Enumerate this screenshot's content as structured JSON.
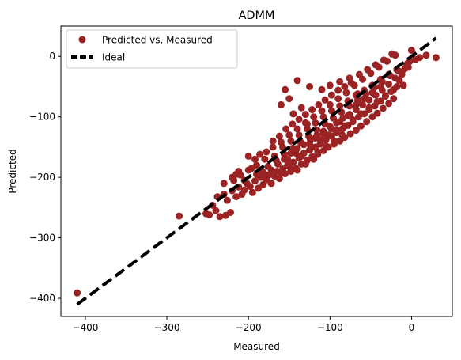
{
  "chart_data": {
    "type": "scatter",
    "title": "ADMM",
    "xlabel": "Measured",
    "ylabel": "Predicted",
    "xlim": [
      -430,
      50
    ],
    "ylim": [
      -430,
      50
    ],
    "xticks": [
      -400,
      -300,
      -200,
      -100,
      0
    ],
    "yticks": [
      -400,
      -300,
      -200,
      -100,
      0
    ],
    "xtick_labels": [
      "−400",
      "−300",
      "−200",
      "−100",
      "0"
    ],
    "ytick_labels": [
      "−400",
      "−300",
      "−200",
      "−100",
      "0"
    ],
    "grid": false,
    "legend": {
      "position": "top-left",
      "entries": [
        "Predicted vs. Measured",
        "Ideal"
      ]
    },
    "series": [
      {
        "name": "Predicted vs. Measured",
        "kind": "scatter",
        "color": "#9b2324",
        "points": [
          [
            -410,
            -391
          ],
          [
            -285,
            -264
          ],
          [
            -252,
            -260
          ],
          [
            -248,
            -262
          ],
          [
            -240,
            -255
          ],
          [
            -235,
            -265
          ],
          [
            -228,
            -263
          ],
          [
            -222,
            -258
          ],
          [
            -244,
            -246
          ],
          [
            -238,
            -232
          ],
          [
            -230,
            -228
          ],
          [
            -226,
            -238
          ],
          [
            -220,
            -222
          ],
          [
            -215,
            -232
          ],
          [
            -212,
            -216
          ],
          [
            -208,
            -228
          ],
          [
            -205,
            -221
          ],
          [
            -202,
            -210
          ],
          [
            -198,
            -215
          ],
          [
            -195,
            -225
          ],
          [
            -192,
            -206
          ],
          [
            -188,
            -218
          ],
          [
            -185,
            -200
          ],
          [
            -182,
            -212
          ],
          [
            -178,
            -204
          ],
          [
            -175,
            -196
          ],
          [
            -172,
            -210
          ],
          [
            -168,
            -198
          ],
          [
            -165,
            -190
          ],
          [
            -162,
            -202
          ],
          [
            -158,
            -186
          ],
          [
            -155,
            -194
          ],
          [
            -152,
            -180
          ],
          [
            -148,
            -190
          ],
          [
            -145,
            -175
          ],
          [
            -142,
            -185
          ],
          [
            -138,
            -168
          ],
          [
            -135,
            -178
          ],
          [
            -132,
            -160
          ],
          [
            -128,
            -172
          ],
          [
            -125,
            -155
          ],
          [
            -122,
            -166
          ],
          [
            -118,
            -150
          ],
          [
            -115,
            -162
          ],
          [
            -112,
            -145
          ],
          [
            -108,
            -156
          ],
          [
            -105,
            -138
          ],
          [
            -102,
            -150
          ],
          [
            -98,
            -132
          ],
          [
            -95,
            -145
          ],
          [
            -92,
            -126
          ],
          [
            -88,
            -140
          ],
          [
            -85,
            -120
          ],
          [
            -82,
            -134
          ],
          [
            -78,
            -114
          ],
          [
            -75,
            -128
          ],
          [
            -72,
            -108
          ],
          [
            -68,
            -122
          ],
          [
            -65,
            -100
          ],
          [
            -62,
            -115
          ],
          [
            -58,
            -95
          ],
          [
            -55,
            -108
          ],
          [
            -52,
            -88
          ],
          [
            -48,
            -100
          ],
          [
            -45,
            -82
          ],
          [
            -42,
            -94
          ],
          [
            -38,
            -74
          ],
          [
            -35,
            -86
          ],
          [
            -32,
            -66
          ],
          [
            -28,
            -78
          ],
          [
            -25,
            -58
          ],
          [
            -22,
            -70
          ],
          [
            -18,
            -50
          ],
          [
            -15,
            -40
          ],
          [
            -12,
            -30
          ],
          [
            -8,
            -20
          ],
          [
            -5,
            -12
          ],
          [
            -2,
            -8
          ],
          [
            0,
            10
          ],
          [
            5,
            -5
          ],
          [
            10,
            -2
          ],
          [
            18,
            2
          ],
          [
            30,
            -2
          ],
          [
            -200,
            -188
          ],
          [
            -210,
            -196
          ],
          [
            -190,
            -180
          ],
          [
            -180,
            -170
          ],
          [
            -170,
            -150
          ],
          [
            -160,
            -142
          ],
          [
            -150,
            -130
          ],
          [
            -140,
            -120
          ],
          [
            -130,
            -110
          ],
          [
            -120,
            -100
          ],
          [
            -110,
            -90
          ],
          [
            -100,
            -80
          ],
          [
            -90,
            -70
          ],
          [
            -80,
            -60
          ],
          [
            -70,
            -48
          ],
          [
            -60,
            -38
          ],
          [
            -50,
            -28
          ],
          [
            -40,
            -18
          ],
          [
            -30,
            -8
          ],
          [
            -20,
            2
          ],
          [
            -140,
            -40
          ],
          [
            -125,
            -50
          ],
          [
            -110,
            -55
          ],
          [
            -100,
            -48
          ],
          [
            -88,
            -42
          ],
          [
            -76,
            -36
          ],
          [
            -64,
            -30
          ],
          [
            -54,
            -22
          ],
          [
            -44,
            -14
          ],
          [
            -34,
            -6
          ],
          [
            -24,
            4
          ],
          [
            -155,
            -55
          ],
          [
            -160,
            -80
          ],
          [
            -150,
            -70
          ],
          [
            -145,
            -95
          ],
          [
            -135,
            -85
          ],
          [
            -128,
            -120
          ],
          [
            -118,
            -110
          ],
          [
            -108,
            -100
          ],
          [
            -98,
            -90
          ],
          [
            -88,
            -82
          ],
          [
            -78,
            -74
          ],
          [
            -68,
            -64
          ],
          [
            -58,
            -56
          ],
          [
            -48,
            -48
          ],
          [
            -38,
            -38
          ],
          [
            -28,
            -30
          ],
          [
            -18,
            -22
          ],
          [
            -220,
            -200
          ],
          [
            -215,
            -195
          ],
          [
            -205,
            -205
          ],
          [
            -190,
            -195
          ],
          [
            -183,
            -190
          ],
          [
            -176,
            -182
          ],
          [
            -166,
            -172
          ],
          [
            -156,
            -162
          ],
          [
            -146,
            -152
          ],
          [
            -136,
            -142
          ],
          [
            -126,
            -132
          ],
          [
            -116,
            -122
          ],
          [
            -106,
            -112
          ],
          [
            -96,
            -102
          ],
          [
            -86,
            -92
          ],
          [
            -76,
            -82
          ],
          [
            -66,
            -72
          ],
          [
            -56,
            -62
          ],
          [
            -46,
            -52
          ],
          [
            -36,
            -42
          ],
          [
            -26,
            -32
          ],
          [
            -16,
            -24
          ],
          [
            -6,
            -14
          ],
          [
            -10,
            -48
          ],
          [
            -200,
            -165
          ],
          [
            -192,
            -170
          ],
          [
            -186,
            -162
          ],
          [
            -178,
            -158
          ],
          [
            -170,
            -140
          ],
          [
            -162,
            -132
          ],
          [
            -154,
            -120
          ],
          [
            -146,
            -112
          ],
          [
            -138,
            -104
          ],
          [
            -130,
            -96
          ],
          [
            -122,
            -88
          ],
          [
            -114,
            -80
          ],
          [
            -106,
            -72
          ],
          [
            -98,
            -64
          ],
          [
            -90,
            -56
          ],
          [
            -82,
            -50
          ],
          [
            -74,
            -44
          ],
          [
            -66,
            -62
          ],
          [
            -180,
            -195
          ],
          [
            -172,
            -188
          ],
          [
            -164,
            -178
          ],
          [
            -156,
            -170
          ],
          [
            -148,
            -160
          ],
          [
            -140,
            -152
          ],
          [
            -132,
            -146
          ],
          [
            -124,
            -138
          ],
          [
            -116,
            -130
          ],
          [
            -108,
            -124
          ],
          [
            -100,
            -116
          ],
          [
            -92,
            -110
          ],
          [
            -84,
            -102
          ],
          [
            -76,
            -96
          ],
          [
            -68,
            -88
          ],
          [
            -60,
            -80
          ],
          [
            -52,
            -72
          ],
          [
            -44,
            -64
          ],
          [
            -36,
            -56
          ],
          [
            -28,
            -46
          ],
          [
            -20,
            -36
          ],
          [
            -12,
            -26
          ],
          [
            -4,
            -18
          ],
          [
            -230,
            -210
          ],
          [
            -218,
            -205
          ],
          [
            -212,
            -190
          ],
          [
            -196,
            -185
          ],
          [
            -168,
            -165
          ],
          [
            -158,
            -150
          ],
          [
            -148,
            -140
          ],
          [
            -138,
            -130
          ],
          [
            -128,
            -112
          ],
          [
            -118,
            -135
          ],
          [
            -108,
            -128
          ],
          [
            -98,
            -120
          ],
          [
            -88,
            -108
          ],
          [
            -78,
            -98
          ],
          [
            -68,
            -80
          ],
          [
            -58,
            -70
          ],
          [
            -48,
            -60
          ],
          [
            -38,
            -50
          ],
          [
            -115,
            -158
          ],
          [
            -105,
            -148
          ],
          [
            -95,
            -140
          ],
          [
            -85,
            -130
          ],
          [
            -120,
            -170
          ],
          [
            -130,
            -178
          ],
          [
            -140,
            -188
          ],
          [
            -150,
            -182
          ],
          [
            -160,
            -192
          ],
          [
            -135,
            -165
          ],
          [
            -142,
            -160
          ],
          [
            -152,
            -170
          ],
          [
            -125,
            -145
          ],
          [
            -112,
            -138
          ],
          [
            -102,
            -130
          ],
          [
            -92,
            -122
          ],
          [
            -82,
            -115
          ],
          [
            -72,
            -105
          ],
          [
            -62,
            -95
          ],
          [
            -52,
            -85
          ],
          [
            -42,
            -75
          ],
          [
            -32,
            -65
          ],
          [
            -22,
            -55
          ]
        ]
      },
      {
        "name": "Ideal",
        "kind": "line",
        "style": "dashed",
        "color": "#000000",
        "points": [
          [
            -410,
            -410
          ],
          [
            30,
            30
          ]
        ]
      }
    ]
  }
}
